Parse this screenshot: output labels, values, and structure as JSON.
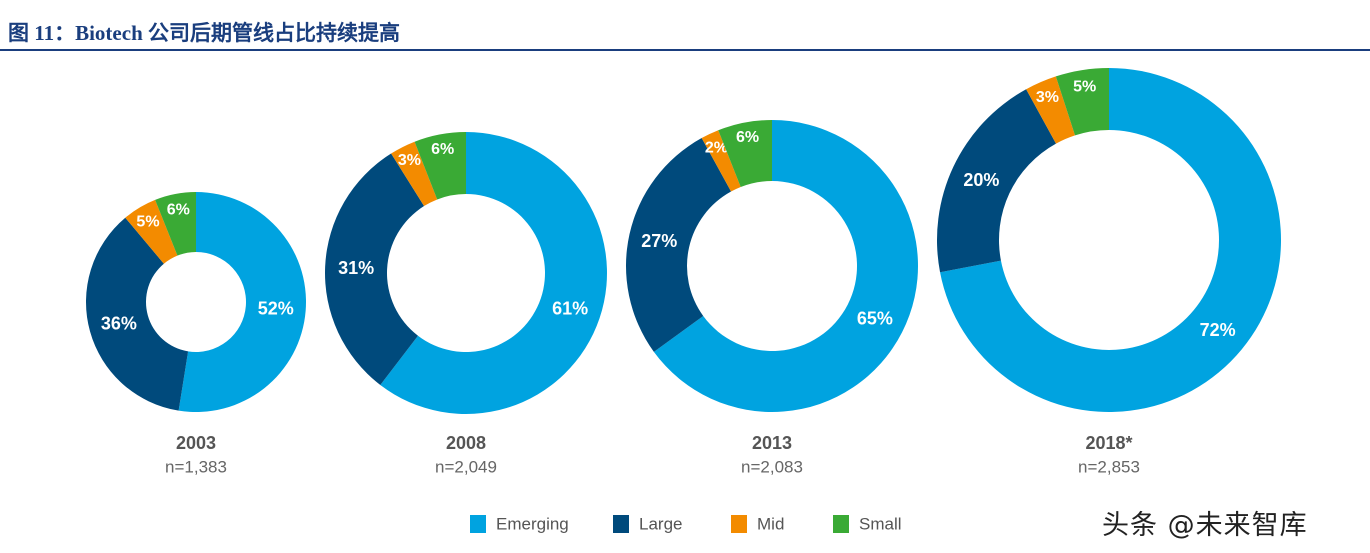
{
  "header": {
    "title": "图 11：Biotech 公司后期管线占比持续提高"
  },
  "colors": {
    "Emerging": "#00a3e0",
    "Large": "#004a7c",
    "Mid": "#f38b00",
    "Small": "#3aaa35",
    "header": "#1a3e7e"
  },
  "chart_data": {
    "type": "pie",
    "subtype": "donut",
    "title": "",
    "categories": [
      "Emerging",
      "Large",
      "Mid",
      "Small"
    ],
    "legend": {
      "placement": "bottom",
      "entries": [
        "Emerging",
        "Large",
        "Mid",
        "Small"
      ]
    },
    "charts": [
      {
        "year": "2003",
        "n": "n=1,383",
        "total": 1383,
        "values": [
          52,
          36,
          5,
          6
        ],
        "labels": [
          "52%",
          "36%",
          "5%",
          "6%"
        ]
      },
      {
        "year": "2008",
        "n": "n=2,049",
        "total": 2049,
        "values": [
          61,
          31,
          3,
          6
        ],
        "labels": [
          "61%",
          "31%",
          "3%",
          "6%"
        ]
      },
      {
        "year": "2013",
        "n": "n=2,083",
        "total": 2083,
        "values": [
          65,
          27,
          2,
          6
        ],
        "labels": [
          "65%",
          "27%",
          "2%",
          "6%"
        ]
      },
      {
        "year": "2018*",
        "n": "n=2,853",
        "total": 2853,
        "values": [
          72,
          20,
          3,
          5
        ],
        "labels": [
          "72%",
          "20%",
          "3%",
          "5%"
        ]
      }
    ]
  },
  "watermark": {
    "text": "头条 @未来智库"
  }
}
